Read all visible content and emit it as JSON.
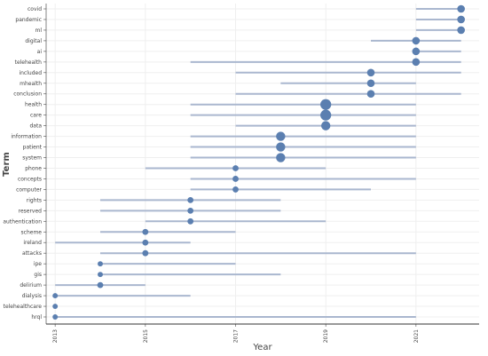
{
  "chart_data": {
    "type": "scatter",
    "subtype": "range-dot",
    "title": "",
    "xlabel": "Year",
    "ylabel": "Term",
    "xlim": [
      2012.8,
      2022.4
    ],
    "xticks": [
      "2013",
      "2015",
      "2017",
      "2019",
      "2021"
    ],
    "grid": true,
    "colors": {
      "range_line": "#aab7cf",
      "point": "#5b7fb0",
      "grid": "#efefef",
      "axis": "#333333"
    },
    "terms": [
      {
        "term": "covid",
        "start": 2021,
        "end": 2022,
        "peak": 2022,
        "size": 3
      },
      {
        "term": "pandemic",
        "start": 2021,
        "end": 2022,
        "peak": 2022,
        "size": 3
      },
      {
        "term": "ml",
        "start": 2021,
        "end": 2022,
        "peak": 2022,
        "size": 3
      },
      {
        "term": "digital",
        "start": 2020,
        "end": 2022,
        "peak": 2021,
        "size": 3
      },
      {
        "term": "ai",
        "start": 2021,
        "end": 2022,
        "peak": 2021,
        "size": 3
      },
      {
        "term": "telehealth",
        "start": 2016,
        "end": 2022,
        "peak": 2021,
        "size": 3
      },
      {
        "term": "included",
        "start": 2017,
        "end": 2022,
        "peak": 2020,
        "size": 3
      },
      {
        "term": "mhealth",
        "start": 2018,
        "end": 2021,
        "peak": 2020,
        "size": 3
      },
      {
        "term": "conclusion",
        "start": 2017,
        "end": 2022,
        "peak": 2020,
        "size": 3
      },
      {
        "term": "health",
        "start": 2016,
        "end": 2021,
        "peak": 2019,
        "size": 5
      },
      {
        "term": "care",
        "start": 2016,
        "end": 2021,
        "peak": 2019,
        "size": 5
      },
      {
        "term": "data",
        "start": 2017,
        "end": 2021,
        "peak": 2019,
        "size": 4
      },
      {
        "term": "information",
        "start": 2016,
        "end": 2021,
        "peak": 2018,
        "size": 4
      },
      {
        "term": "patient",
        "start": 2016,
        "end": 2021,
        "peak": 2018,
        "size": 4
      },
      {
        "term": "system",
        "start": 2016,
        "end": 2021,
        "peak": 2018,
        "size": 4
      },
      {
        "term": "phone",
        "start": 2015,
        "end": 2019,
        "peak": 2017,
        "size": 2
      },
      {
        "term": "concepts",
        "start": 2016,
        "end": 2021,
        "peak": 2017,
        "size": 2
      },
      {
        "term": "computer",
        "start": 2016,
        "end": 2020,
        "peak": 2017,
        "size": 2
      },
      {
        "term": "rights",
        "start": 2014,
        "end": 2018,
        "peak": 2016,
        "size": 2
      },
      {
        "term": "reserved",
        "start": 2014,
        "end": 2018,
        "peak": 2016,
        "size": 2
      },
      {
        "term": "authentication",
        "start": 2015,
        "end": 2019,
        "peak": 2016,
        "size": 2
      },
      {
        "term": "scheme",
        "start": 2014,
        "end": 2017,
        "peak": 2015,
        "size": 2
      },
      {
        "term": "ireland",
        "start": 2013,
        "end": 2016,
        "peak": 2015,
        "size": 2
      },
      {
        "term": "attacks",
        "start": 2014,
        "end": 2021,
        "peak": 2015,
        "size": 2
      },
      {
        "term": "ipe",
        "start": 2014,
        "end": 2017,
        "peak": 2014,
        "size": 1.5
      },
      {
        "term": "gis",
        "start": 2014,
        "end": 2018,
        "peak": 2014,
        "size": 1.5
      },
      {
        "term": "delirium",
        "start": 2013,
        "end": 2015,
        "peak": 2014,
        "size": 2
      },
      {
        "term": "dialysis",
        "start": 2013,
        "end": 2016,
        "peak": 2013,
        "size": 1.5
      },
      {
        "term": "telehealthcare",
        "start": 2013,
        "end": 2013,
        "peak": 2013,
        "size": 1.5
      },
      {
        "term": "hrql",
        "start": 2013,
        "end": 2021,
        "peak": 2013,
        "size": 1.5
      }
    ]
  }
}
